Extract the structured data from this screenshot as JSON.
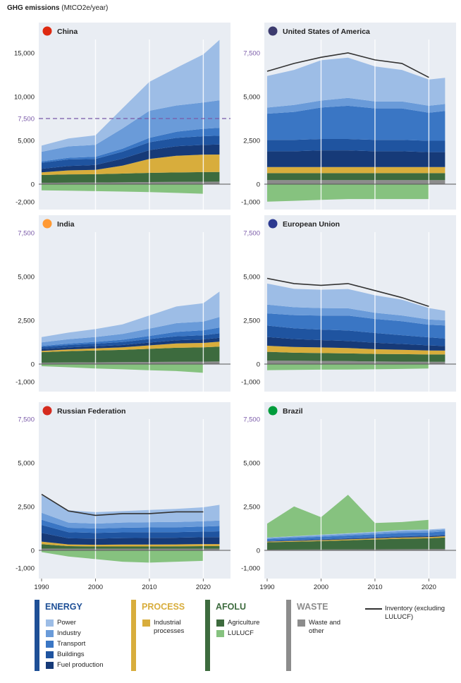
{
  "title": {
    "main": "GHG emissions",
    "unit": "(MtCO2e/year)"
  },
  "colors": {
    "panel_bg": "#e9edf3",
    "power": "#9dbde6",
    "industry": "#6a9bd9",
    "transport": "#3a76c4",
    "buildings": "#1f54a0",
    "fuel": "#163a78",
    "process": "#d8ad3c",
    "agriculture": "#3d6b3e",
    "lulucf": "#86c27f",
    "waste": "#8c8c8c",
    "inventory": "#333333",
    "purple": "#7a5aa8",
    "energy_bar": "#1e4f96",
    "process_bar": "#d8ad3c",
    "afolu_bar": "#3d6b3e",
    "waste_bar": "#8c8c8c"
  },
  "legend": {
    "energy": {
      "title": "ENERGY",
      "items": [
        "Power",
        "Industry",
        "Transport",
        "Buildings",
        "Fuel production"
      ]
    },
    "process": {
      "title": "PROCESS",
      "items": [
        "Industrial processes"
      ]
    },
    "afolu": {
      "title": "AFOLU",
      "items": [
        "Agriculture",
        "LULUCF"
      ]
    },
    "waste": {
      "title": "WASTE",
      "items": [
        "Waste and other"
      ]
    },
    "inventory": {
      "label": "Inventory (excluding LULUCF)"
    }
  },
  "chart_data": [
    {
      "type": "area",
      "title": "China",
      "flag": "china-flag-icon",
      "ylim": [
        -2000,
        16000
      ],
      "yticks": [
        "15,000",
        "10,000",
        "7,500",
        "5,000",
        "0",
        "-2,000"
      ],
      "highlight_line": 7500,
      "years": [
        1990,
        1995,
        2000,
        2005,
        2010,
        2015,
        2020,
        2023
      ],
      "series": [
        {
          "name": "Waste and other",
          "values": [
            150,
            170,
            190,
            210,
            240,
            260,
            280,
            290
          ]
        },
        {
          "name": "Agriculture",
          "values": [
            900,
            950,
            950,
            1000,
            1050,
            1080,
            1100,
            1100
          ]
        },
        {
          "name": "Industrial processes",
          "values": [
            300,
            450,
            500,
            900,
            1600,
            1900,
            2000,
            2000
          ]
        },
        {
          "name": "Fuel production",
          "values": [
            400,
            500,
            550,
            800,
            1000,
            1100,
            1100,
            1150
          ]
        },
        {
          "name": "Buildings",
          "values": [
            700,
            750,
            700,
            800,
            900,
            950,
            1000,
            1000
          ]
        },
        {
          "name": "Transport",
          "values": [
            150,
            200,
            250,
            350,
            500,
            700,
            850,
            900
          ]
        },
        {
          "name": "Industry",
          "values": [
            1100,
            1300,
            1350,
            2300,
            3100,
            3000,
            3000,
            3150
          ]
        },
        {
          "name": "Power",
          "values": [
            700,
            900,
            1100,
            2300,
            3300,
            4300,
            5500,
            6900
          ]
        }
      ],
      "lulucf": [
        -700,
        -750,
        -800,
        -850,
        -900,
        -1000,
        -1100,
        null
      ],
      "inventory": null
    },
    {
      "type": "area",
      "title": "United States of America",
      "flag": "usa-flag-icon",
      "ylim": [
        -1300,
        8000
      ],
      "yticks": [
        "7,500",
        "5,000",
        "2,500",
        "0",
        "-1,000"
      ],
      "highlight_line": null,
      "years": [
        1990,
        1995,
        2000,
        2005,
        2010,
        2015,
        2020,
        2023
      ],
      "series": [
        {
          "name": "Waste and other",
          "values": [
            230,
            230,
            230,
            230,
            230,
            230,
            230,
            230
          ]
        },
        {
          "name": "Agriculture",
          "values": [
            400,
            400,
            400,
            400,
            400,
            400,
            400,
            400
          ]
        },
        {
          "name": "Industrial processes",
          "values": [
            350,
            350,
            350,
            350,
            350,
            350,
            350,
            350
          ]
        },
        {
          "name": "Fuel production",
          "values": [
            900,
            900,
            950,
            950,
            900,
            900,
            850,
            850
          ]
        },
        {
          "name": "Buildings",
          "values": [
            650,
            650,
            650,
            650,
            650,
            650,
            650,
            650
          ]
        },
        {
          "name": "Transport",
          "values": [
            1500,
            1600,
            1800,
            1900,
            1800,
            1800,
            1600,
            1700
          ]
        },
        {
          "name": "Industry",
          "values": [
            350,
            400,
            400,
            450,
            400,
            400,
            400,
            400
          ]
        },
        {
          "name": "Power",
          "values": [
            1800,
            2000,
            2300,
            2300,
            2000,
            1800,
            1500,
            1500
          ]
        }
      ],
      "lulucf": [
        -1000,
        -950,
        -900,
        -850,
        -850,
        -850,
        -850,
        null
      ],
      "inventory": [
        6450,
        6900,
        7250,
        7500,
        7100,
        6900,
        6100,
        null
      ]
    },
    {
      "type": "area",
      "title": "India",
      "flag": "india-flag-icon",
      "ylim": [
        -1500,
        8000
      ],
      "yticks": [
        "7,500",
        "5,000",
        "2,500",
        "0",
        "-1,000"
      ],
      "highlight_line": null,
      "years": [
        1990,
        1995,
        2000,
        2005,
        2010,
        2015,
        2020,
        2023
      ],
      "series": [
        {
          "name": "Waste and other",
          "values": [
            80,
            90,
            100,
            110,
            120,
            130,
            140,
            150
          ]
        },
        {
          "name": "Agriculture",
          "values": [
            600,
            650,
            680,
            700,
            750,
            800,
            820,
            850
          ]
        },
        {
          "name": "Industrial processes",
          "values": [
            80,
            100,
            120,
            150,
            200,
            250,
            250,
            280
          ]
        },
        {
          "name": "Fuel production",
          "values": [
            100,
            110,
            120,
            130,
            160,
            180,
            200,
            220
          ]
        },
        {
          "name": "Buildings",
          "values": [
            120,
            140,
            150,
            170,
            200,
            230,
            240,
            260
          ]
        },
        {
          "name": "Transport",
          "values": [
            60,
            80,
            100,
            130,
            180,
            250,
            280,
            330
          ]
        },
        {
          "name": "Industry",
          "values": [
            200,
            250,
            280,
            330,
            420,
            500,
            500,
            600
          ]
        },
        {
          "name": "Power",
          "values": [
            300,
            380,
            450,
            550,
            750,
            950,
            1050,
            1450
          ]
        }
      ],
      "lulucf": [
        -120,
        -180,
        -250,
        -300,
        -350,
        -400,
        -500,
        null
      ],
      "inventory": null
    },
    {
      "type": "area",
      "title": "European Union",
      "flag": "eu-flag-icon",
      "ylim": [
        -1500,
        8000
      ],
      "yticks": [
        "7,500",
        "5,000",
        "2,500",
        "0",
        "-1,000"
      ],
      "highlight_line": null,
      "years": [
        1990,
        1995,
        2000,
        2005,
        2010,
        2015,
        2020,
        2023
      ],
      "series": [
        {
          "name": "Waste and other",
          "values": [
            200,
            190,
            180,
            170,
            150,
            140,
            130,
            130
          ]
        },
        {
          "name": "Agriculture",
          "values": [
            500,
            460,
            450,
            440,
            430,
            430,
            420,
            420
          ]
        },
        {
          "name": "Industrial processes",
          "values": [
            350,
            330,
            320,
            310,
            270,
            250,
            230,
            220
          ]
        },
        {
          "name": "Fuel production",
          "values": [
            500,
            450,
            420,
            400,
            370,
            330,
            290,
            260
          ]
        },
        {
          "name": "Buildings",
          "values": [
            650,
            620,
            600,
            600,
            560,
            500,
            460,
            430
          ]
        },
        {
          "name": "Transport",
          "values": [
            700,
            750,
            800,
            850,
            800,
            800,
            720,
            750
          ]
        },
        {
          "name": "Industry",
          "values": [
            500,
            450,
            430,
            420,
            350,
            330,
            300,
            290
          ]
        },
        {
          "name": "Power",
          "values": [
            1200,
            1050,
            1050,
            1100,
            1000,
            900,
            650,
            550
          ]
        }
      ],
      "lulucf": [
        -350,
        -330,
        -320,
        -310,
        -300,
        -280,
        -250,
        null
      ],
      "inventory": [
        4900,
        4600,
        4500,
        4600,
        4200,
        3800,
        3300,
        null
      ]
    },
    {
      "type": "area",
      "title": "Russian Federation",
      "flag": "russia-flag-icon",
      "ylim": [
        -1800,
        8000
      ],
      "yticks": [
        "7,500",
        "5,000",
        "2,500",
        "0",
        "-1,000"
      ],
      "highlight_line": null,
      "years": [
        1990,
        1995,
        2000,
        2005,
        2010,
        2015,
        2020,
        2023
      ],
      "series": [
        {
          "name": "Waste and other",
          "values": [
            100,
            90,
            90,
            90,
            90,
            90,
            90,
            90
          ]
        },
        {
          "name": "Agriculture",
          "values": [
            250,
            150,
            130,
            130,
            130,
            140,
            150,
            150
          ]
        },
        {
          "name": "Industrial processes",
          "values": [
            150,
            100,
            100,
            110,
            110,
            110,
            120,
            120
          ]
        },
        {
          "name": "Fuel production",
          "values": [
            500,
            350,
            350,
            370,
            380,
            380,
            390,
            400
          ]
        },
        {
          "name": "Buildings",
          "values": [
            450,
            350,
            330,
            330,
            330,
            320,
            320,
            330
          ]
        },
        {
          "name": "Transport",
          "values": [
            300,
            250,
            250,
            260,
            270,
            280,
            290,
            300
          ]
        },
        {
          "name": "Industry",
          "values": [
            400,
            300,
            280,
            300,
            300,
            300,
            300,
            310
          ]
        },
        {
          "name": "Power",
          "values": [
            1000,
            700,
            650,
            650,
            700,
            750,
            800,
            900
          ]
        }
      ],
      "lulucf": [
        -100,
        -350,
        -500,
        -650,
        -700,
        -650,
        -600,
        null
      ],
      "inventory": [
        3200,
        2250,
        2000,
        2100,
        2100,
        2200,
        2200,
        null
      ]
    },
    {
      "type": "area",
      "title": "Brazil",
      "flag": "brazil-flag-icon",
      "ylim": [
        -1800,
        8000
      ],
      "yticks": [
        "7,500",
        "5,000",
        "2,500",
        "0",
        "-1,000"
      ],
      "highlight_line": null,
      "years": [
        1990,
        1995,
        2000,
        2005,
        2010,
        2015,
        2020,
        2023
      ],
      "series": [
        {
          "name": "Waste and other",
          "values": [
            40,
            45,
            50,
            55,
            60,
            65,
            70,
            75
          ]
        },
        {
          "name": "Agriculture",
          "values": [
            420,
            450,
            480,
            520,
            560,
            600,
            620,
            660
          ]
        },
        {
          "name": "Industrial processes",
          "values": [
            40,
            45,
            50,
            55,
            60,
            65,
            70,
            70
          ]
        },
        {
          "name": "Fuel production",
          "values": [
            20,
            25,
            30,
            35,
            40,
            45,
            45,
            45
          ]
        },
        {
          "name": "Buildings",
          "values": [
            30,
            30,
            30,
            30,
            30,
            30,
            30,
            30
          ]
        },
        {
          "name": "Transport",
          "values": [
            100,
            120,
            140,
            150,
            170,
            190,
            190,
            210
          ]
        },
        {
          "name": "Industry",
          "values": [
            60,
            70,
            80,
            90,
            100,
            110,
            110,
            110
          ]
        },
        {
          "name": "Power",
          "values": [
            20,
            25,
            35,
            40,
            45,
            60,
            60,
            50
          ]
        }
      ],
      "lulucf": [
        800,
        1700,
        1000,
        2200,
        500,
        450,
        550,
        null
      ],
      "inventory": null
    }
  ],
  "xticks": [
    "1990",
    "2000",
    "2010",
    "2020"
  ]
}
